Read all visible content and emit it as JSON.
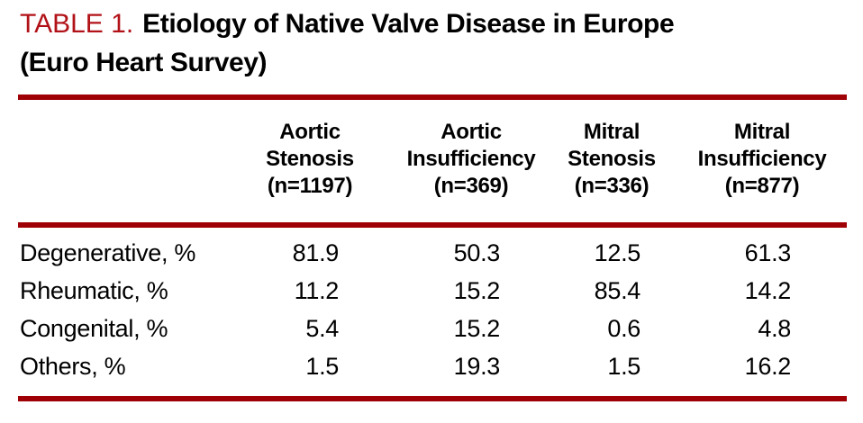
{
  "colors": {
    "title_accent_red": "#b11218",
    "rule_red": "#9e0006",
    "text": "#000000",
    "background": "#ffffff"
  },
  "title": {
    "prefix": "TABLE 1.",
    "line1": "Etiology of Native Valve Disease in Europe",
    "line2": "(Euro Heart Survey)"
  },
  "table": {
    "columns": [
      {
        "line1": "Aortic",
        "line2": "Stenosis",
        "n": "(n=1197)"
      },
      {
        "line1": "Aortic",
        "line2": "Insufficiency",
        "n": "(n=369)"
      },
      {
        "line1": "Mitral",
        "line2": "Stenosis",
        "n": "(n=336)"
      },
      {
        "line1": "Mitral",
        "line2": "Insufficiency",
        "n": "(n=877)"
      }
    ],
    "rows": [
      {
        "label": "Degenerative, %",
        "values": [
          "81.9",
          "50.3",
          "12.5",
          "61.3"
        ]
      },
      {
        "label": "Rheumatic, %",
        "values": [
          "11.2",
          "15.2",
          "85.4",
          "14.2"
        ]
      },
      {
        "label": "Congenital, %",
        "values": [
          "5.4",
          "15.2",
          "0.6",
          "4.8"
        ]
      },
      {
        "label": "Others, %",
        "values": [
          "1.5",
          "19.3",
          "1.5",
          "16.2"
        ]
      }
    ]
  },
  "chart_data": {
    "type": "table",
    "title": "TABLE 1. Etiology of Native Valve Disease in Europe (Euro Heart Survey)",
    "columns": [
      "Aortic Stenosis (n=1197)",
      "Aortic Insufficiency (n=369)",
      "Mitral Stenosis (n=336)",
      "Mitral Insufficiency (n=877)"
    ],
    "row_labels": [
      "Degenerative, %",
      "Rheumatic, %",
      "Congenital, %",
      "Others, %"
    ],
    "values": [
      [
        81.9,
        50.3,
        12.5,
        61.3
      ],
      [
        11.2,
        15.2,
        85.4,
        14.2
      ],
      [
        5.4,
        15.2,
        0.6,
        4.8
      ],
      [
        1.5,
        19.3,
        1.5,
        16.2
      ]
    ]
  }
}
